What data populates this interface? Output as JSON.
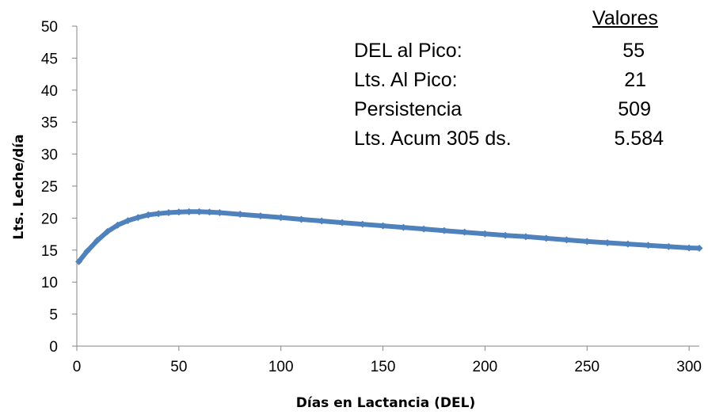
{
  "chart_data": {
    "type": "line",
    "xlabel": "Días en Lactancia (DEL)",
    "ylabel": "Lts. Leche/día",
    "xlim": [
      0,
      305
    ],
    "ylim": [
      0,
      50
    ],
    "xticks": [
      0,
      50,
      100,
      150,
      200,
      250,
      300
    ],
    "yticks": [
      0,
      5,
      10,
      15,
      20,
      25,
      30,
      35,
      40,
      45,
      50
    ],
    "grid": false,
    "series": [
      {
        "color": "#4f81bd",
        "marker": "diamond",
        "x": [
          1,
          5,
          10,
          15,
          20,
          25,
          30,
          35,
          40,
          45,
          50,
          55,
          60,
          65,
          70,
          80,
          90,
          100,
          110,
          120,
          130,
          140,
          150,
          160,
          170,
          180,
          190,
          200,
          210,
          220,
          230,
          240,
          250,
          260,
          270,
          280,
          290,
          300,
          305
        ],
        "y": [
          13.2,
          14.8,
          16.5,
          17.9,
          18.9,
          19.6,
          20.1,
          20.5,
          20.7,
          20.85,
          20.95,
          21.0,
          21.0,
          20.95,
          20.85,
          20.6,
          20.35,
          20.1,
          19.8,
          19.55,
          19.3,
          19.05,
          18.8,
          18.55,
          18.3,
          18.05,
          17.8,
          17.55,
          17.3,
          17.1,
          16.85,
          16.6,
          16.35,
          16.15,
          15.95,
          15.75,
          15.55,
          15.35,
          15.3
        ]
      }
    ]
  },
  "summary": {
    "heading": "Valores",
    "rows": [
      {
        "label": "DEL al Pico:",
        "value": "55"
      },
      {
        "label": "Lts. Al Pico:",
        "value": "21"
      },
      {
        "label": "Persistencia",
        "value": "509"
      },
      {
        "label": "Lts. Acum 305 ds.",
        "value": "5.584"
      }
    ]
  }
}
